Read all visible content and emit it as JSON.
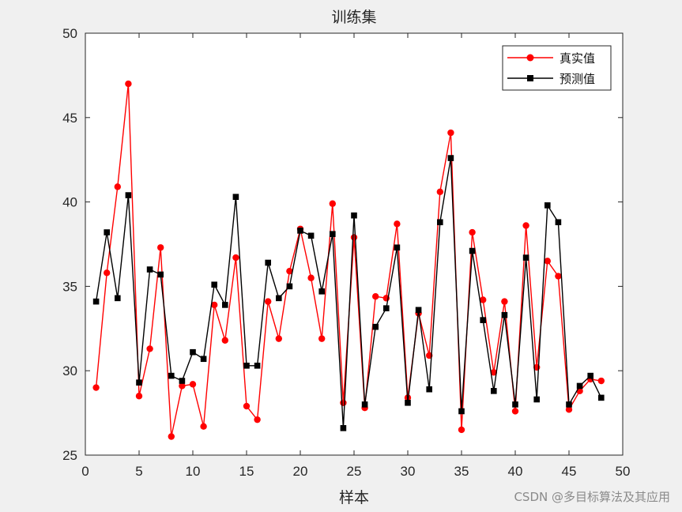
{
  "chart_data": {
    "type": "line",
    "title": "训练集",
    "xlabel": "样本",
    "ylabel": "",
    "xlim": [
      0,
      50
    ],
    "ylim": [
      25,
      50
    ],
    "xticks": [
      0,
      5,
      10,
      15,
      20,
      25,
      30,
      35,
      40,
      45,
      50
    ],
    "yticks": [
      25,
      30,
      35,
      40,
      45,
      50
    ],
    "grid": false,
    "legend_position": "top-right",
    "x": [
      1,
      2,
      3,
      4,
      5,
      6,
      7,
      8,
      9,
      10,
      11,
      12,
      13,
      14,
      15,
      16,
      17,
      18,
      19,
      20,
      21,
      22,
      23,
      24,
      25,
      26,
      27,
      28,
      29,
      30,
      31,
      32,
      33,
      34,
      35,
      36,
      37,
      38,
      39,
      40,
      41,
      42,
      43,
      44,
      45,
      46,
      47,
      48
    ],
    "series": [
      {
        "name": "真实值",
        "color": "#ff0000",
        "marker": "circle",
        "values": [
          29.0,
          35.8,
          40.9,
          47.0,
          28.5,
          31.3,
          37.3,
          26.1,
          29.1,
          29.2,
          26.7,
          33.9,
          31.8,
          36.7,
          27.9,
          27.1,
          34.1,
          31.9,
          35.9,
          38.4,
          35.5,
          31.9,
          39.9,
          28.1,
          37.9,
          27.8,
          34.4,
          34.3,
          38.7,
          28.4,
          33.4,
          30.9,
          40.6,
          44.1,
          26.5,
          38.2,
          34.2,
          29.9,
          34.1,
          27.6,
          38.6,
          30.2,
          36.5,
          35.6,
          27.7,
          28.8,
          29.5,
          29.4
        ]
      },
      {
        "name": "预测值",
        "color": "#000000",
        "marker": "square",
        "values": [
          34.1,
          38.2,
          34.3,
          40.4,
          29.3,
          36.0,
          35.7,
          29.7,
          29.4,
          31.1,
          30.7,
          35.1,
          33.9,
          40.3,
          30.3,
          30.3,
          36.4,
          34.3,
          35.0,
          38.3,
          38.0,
          34.7,
          38.1,
          26.6,
          39.2,
          28.0,
          32.6,
          33.7,
          37.3,
          28.1,
          33.6,
          28.9,
          38.8,
          42.6,
          27.6,
          37.1,
          33.0,
          28.8,
          33.3,
          28.0,
          36.7,
          28.3,
          39.8,
          38.8,
          28.0,
          29.1,
          29.7,
          28.4
        ]
      }
    ]
  },
  "watermark": "CSDN @多目标算法及其应用"
}
